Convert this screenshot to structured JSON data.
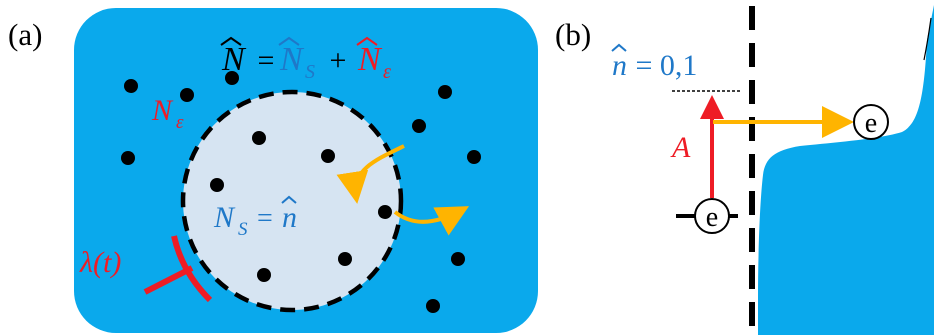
{
  "panel_a": {
    "label": "(a)",
    "total_eq": {
      "N": "N",
      "eq": " = ",
      "NS": "N",
      "plus": " + ",
      "NE": "N"
    },
    "env_label": {
      "N": "N",
      "sub": "ε"
    },
    "sys_label": {
      "N": "N",
      "sub": "S",
      "eq": " = ",
      "n": "n"
    },
    "coupling_label": "λ(t)"
  },
  "panel_b": {
    "label": "(b)",
    "occupation": {
      "n": "n",
      "rest": " = 0,1"
    },
    "amplitude": "A",
    "electron_left": "e",
    "electron_right": "e"
  },
  "colors": {
    "environment": "#0aa9ec",
    "system": "#d6e4f2",
    "red": "#ee1c25",
    "blue": "#1f78c8",
    "orange": "#ffb400",
    "black": "#000000"
  }
}
